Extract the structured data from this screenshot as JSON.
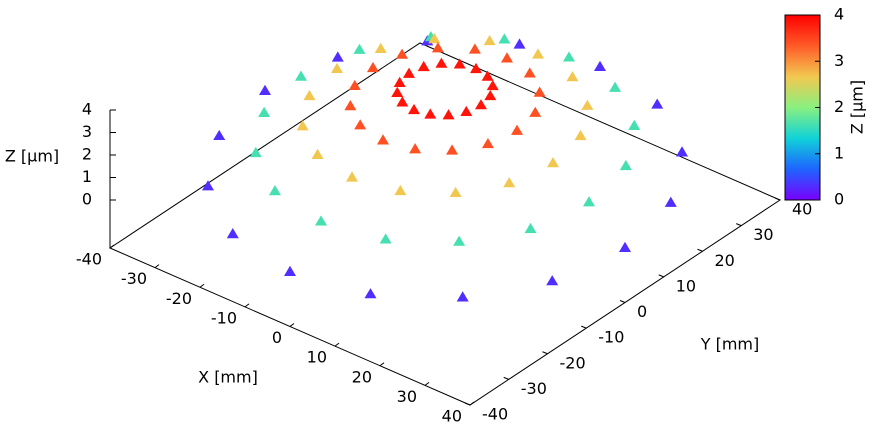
{
  "chart_data": {
    "type": "scatter3d",
    "xlabel": "X [mm]",
    "ylabel": "Y [mm]",
    "zlabel": "Z [μm]",
    "cblabel": "Z [μm]",
    "xlim": [
      -40,
      40
    ],
    "ylim": [
      -40,
      40
    ],
    "zlim": [
      0,
      4
    ],
    "cblim": [
      0,
      4
    ],
    "xticks": [
      -40,
      -30,
      -20,
      -10,
      0,
      10,
      20,
      30,
      40
    ],
    "yticks": [
      -40,
      -30,
      -20,
      -10,
      0,
      10,
      20,
      30,
      40
    ],
    "zticks": [
      0,
      1,
      2,
      3,
      4
    ],
    "cbticks": [
      0,
      1,
      2,
      3,
      4
    ],
    "palette": [
      "#7a00ff",
      "#1e64ff",
      "#10d2d8",
      "#8af080",
      "#f2c850",
      "#ff5a28",
      "#ff0000"
    ],
    "x": [
      8,
      16,
      24,
      32,
      40,
      7.4,
      14.8,
      22.2,
      29.6,
      37,
      5.7,
      11.3,
      17,
      22.6,
      28.3,
      3.1,
      6.1,
      9.2,
      12.3,
      15.3,
      0,
      0,
      0,
      0,
      0,
      -3.1,
      -6.1,
      -9.2,
      -12.3,
      -15.3,
      -5.7,
      -11.3,
      -17,
      -22.6,
      -28.3,
      -7.4,
      -14.8,
      -22.2,
      -29.6,
      -37,
      -8,
      -16,
      -24,
      -32,
      -40,
      -7.4,
      -14.8,
      -22.2,
      -29.6,
      -37,
      -5.7,
      -11.3,
      -17,
      -22.6,
      -28.3,
      -3.1,
      -6.1,
      -9.2,
      -12.3,
      -15.3,
      0,
      0,
      0,
      0,
      0,
      3.1,
      6.1,
      9.2,
      12.3,
      15.3,
      5.7,
      11.3,
      17,
      22.6,
      28.3,
      7.4,
      14.8,
      22.2,
      29.6,
      37
    ],
    "y": [
      0,
      0,
      0,
      0,
      0,
      3.1,
      6.1,
      9.2,
      12.3,
      15.3,
      5.7,
      11.3,
      17,
      22.6,
      28.3,
      7.4,
      14.8,
      22.2,
      29.6,
      37,
      8,
      16,
      24,
      32,
      40,
      7.4,
      14.8,
      22.2,
      29.6,
      37,
      5.7,
      11.3,
      17,
      22.6,
      28.3,
      3.1,
      6.1,
      9.2,
      12.3,
      15.3,
      0,
      0,
      0,
      0,
      0,
      -3.1,
      -6.1,
      -9.2,
      -12.3,
      -15.3,
      -5.7,
      -11.3,
      -17,
      -22.6,
      -28.3,
      -7.4,
      -14.8,
      -22.2,
      -29.6,
      -37,
      -8,
      -16,
      -24,
      -32,
      -40,
      -7.4,
      -14.8,
      -22.2,
      -29.6,
      -37,
      -5.7,
      -11.3,
      -17,
      -22.6,
      -28.3,
      -3.1,
      -6.1,
      -9.2,
      -12.3,
      -15.3
    ],
    "z": [
      3.85,
      3.41,
      2.67,
      1.63,
      0.3,
      3.85,
      3.41,
      2.67,
      1.63,
      0.3,
      3.85,
      3.41,
      2.67,
      1.63,
      0.3,
      3.85,
      3.41,
      2.67,
      1.63,
      0.3,
      3.85,
      3.41,
      2.67,
      1.63,
      0.3,
      3.85,
      3.41,
      2.67,
      1.63,
      0.3,
      3.85,
      3.41,
      2.67,
      1.63,
      0.3,
      3.85,
      3.41,
      2.67,
      1.63,
      0.3,
      3.85,
      3.41,
      2.67,
      1.63,
      0.3,
      3.85,
      3.41,
      2.67,
      1.63,
      0.3,
      3.85,
      3.41,
      2.67,
      1.63,
      0.3,
      3.85,
      3.41,
      2.67,
      1.63,
      0.3,
      3.85,
      3.41,
      2.67,
      1.63,
      0.3,
      3.85,
      3.41,
      2.67,
      1.63,
      0.3,
      3.85,
      3.41,
      2.67,
      1.63,
      0.3,
      3.85,
      3.41,
      2.67,
      1.63,
      0.3
    ]
  }
}
